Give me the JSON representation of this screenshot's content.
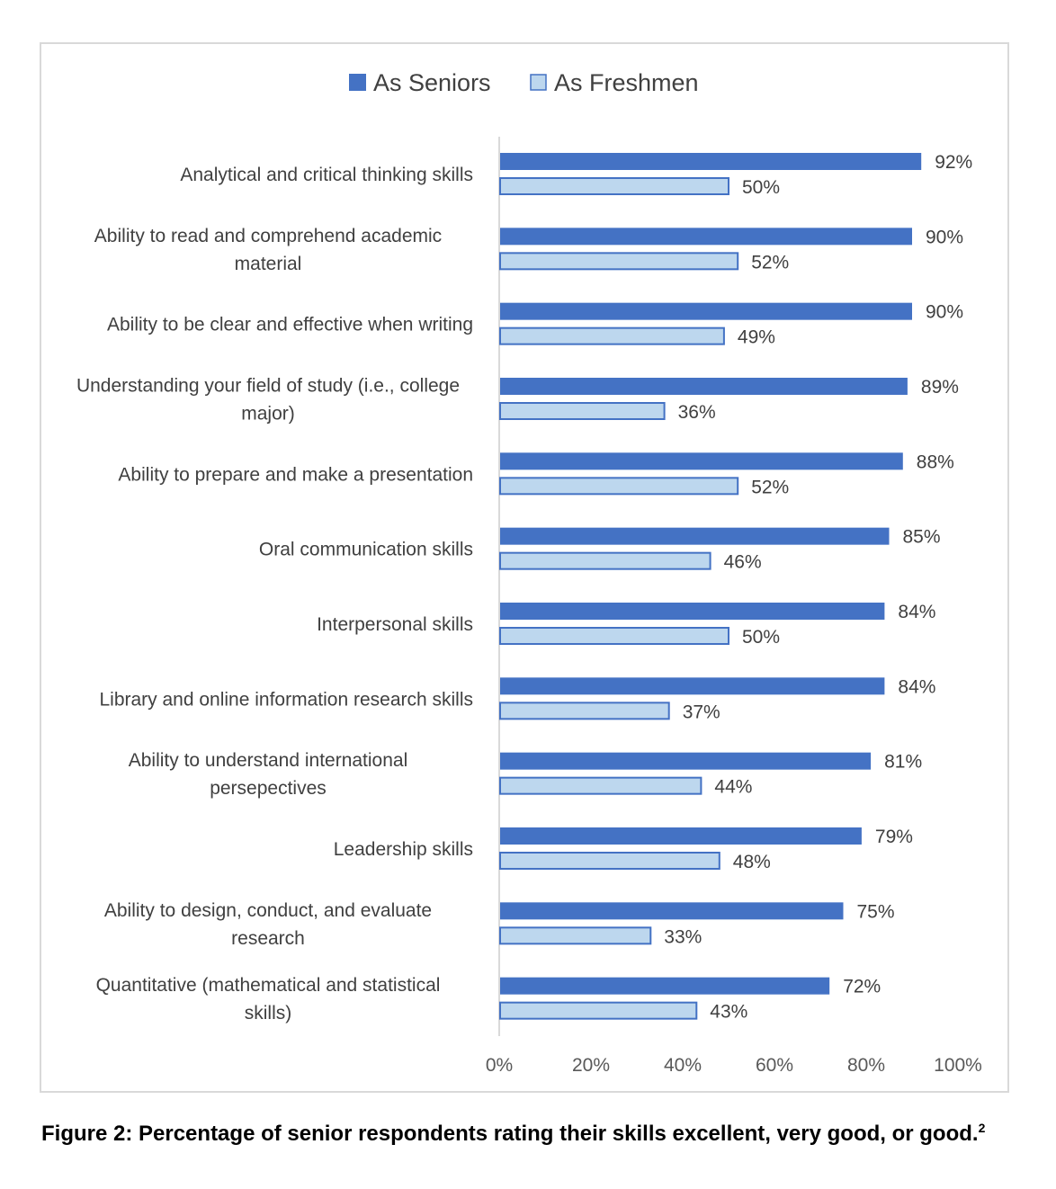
{
  "chart_data": {
    "type": "bar",
    "orientation": "horizontal",
    "categories": [
      [
        "Analytical and critical thinking skills"
      ],
      [
        "Ability to read and comprehend academic",
        "material"
      ],
      [
        "Ability to be clear and effective when writing"
      ],
      [
        "Understanding your field of study (i.e., college",
        "major)"
      ],
      [
        "Ability to prepare and make a presentation"
      ],
      [
        "Oral communication skills"
      ],
      [
        "Interpersonal skills"
      ],
      [
        "Library and online information research skills"
      ],
      [
        "Ability to understand international",
        "persepectives"
      ],
      [
        "Leadership skills"
      ],
      [
        "Ability to design, conduct, and evaluate",
        "research"
      ],
      [
        "Quantitative (mathematical and statistical",
        "skills)"
      ]
    ],
    "series": [
      {
        "name": "As Seniors",
        "values": [
          92,
          90,
          90,
          89,
          88,
          85,
          84,
          84,
          81,
          79,
          75,
          72
        ],
        "labels": [
          "92%",
          "90%",
          "90%",
          "89%",
          "88%",
          "85%",
          "84%",
          "84%",
          "81%",
          "79%",
          "75%",
          "72%"
        ]
      },
      {
        "name": "As Freshmen",
        "values": [
          50,
          52,
          49,
          36,
          52,
          46,
          50,
          37,
          44,
          48,
          33,
          43
        ],
        "labels": [
          "50%",
          "52%",
          "49%",
          "36%",
          "52%",
          "46%",
          "50%",
          "37%",
          "44%",
          "48%",
          "33%",
          "43%"
        ]
      }
    ],
    "xlim": [
      0,
      100
    ],
    "xticks": [
      "0%",
      "20%",
      "40%",
      "60%",
      "80%",
      "100%"
    ],
    "legend_position": "top",
    "grid": false
  },
  "colors": {
    "seniors_fill": "#4472c4",
    "freshmen_fill": "#bdd7ee",
    "freshmen_border": "#4472c4",
    "axis": "#d9d9d9",
    "text": "#404040"
  },
  "caption": {
    "text": "Figure 2: Percentage of senior respondents rating their skills excellent, very good, or good.",
    "sup": "2"
  }
}
